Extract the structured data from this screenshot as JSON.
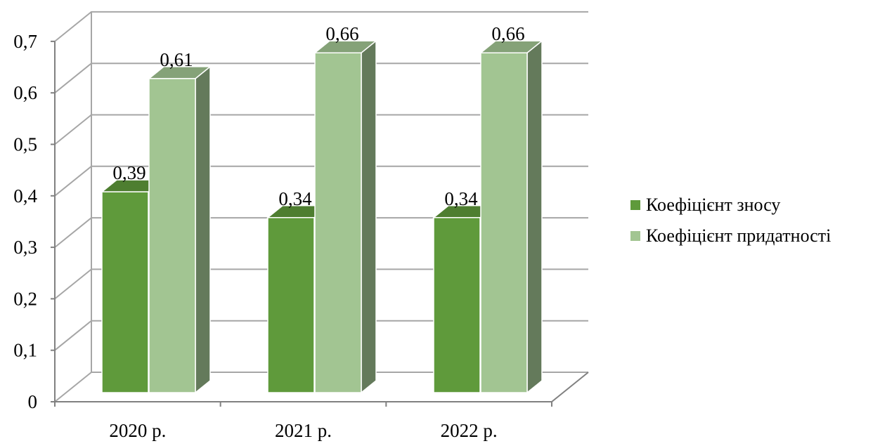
{
  "colors": {
    "series_0": "#5f9a3b",
    "series_1": "#a2c592",
    "grid": "#a6a6a6",
    "axis": "#808080"
  },
  "chart_data": {
    "type": "bar",
    "title": "",
    "xlabel": "",
    "ylabel": "",
    "categories": [
      "2020 р.",
      "2021 р.",
      "2022 р."
    ],
    "series": [
      {
        "name": "Коефіцієнт зносу",
        "values": [
          0.39,
          0.34,
          0.34
        ],
        "labels": [
          "0,39",
          "0,34",
          "0,34"
        ]
      },
      {
        "name": "Коефіцієнт придатності",
        "values": [
          0.61,
          0.66,
          0.66
        ],
        "labels": [
          "0,61",
          "0,66",
          "0,66"
        ]
      }
    ],
    "ylim": [
      0,
      0.7
    ],
    "yticks": [
      0,
      0.1,
      0.2,
      0.3,
      0.4,
      0.5,
      0.6,
      0.7
    ],
    "ytick_labels": [
      "0",
      "0,1",
      "0,2",
      "0,3",
      "0,4",
      "0,5",
      "0,6",
      "0,7"
    ],
    "grid": true,
    "legend_position": "right",
    "style": "3d-clustered-column"
  }
}
